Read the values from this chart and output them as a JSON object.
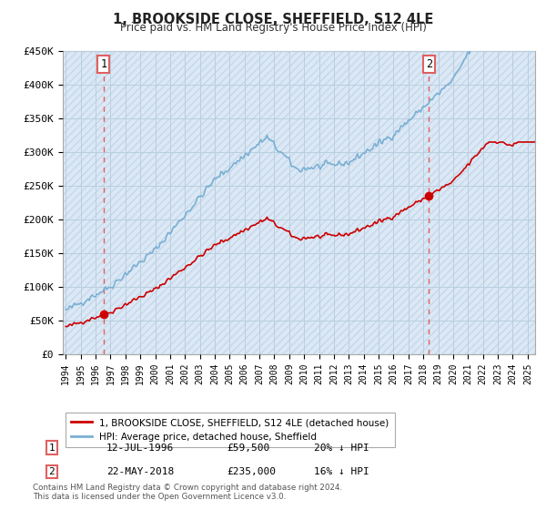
{
  "title": "1, BROOKSIDE CLOSE, SHEFFIELD, S12 4LE",
  "subtitle": "Price paid vs. HM Land Registry's House Price Index (HPI)",
  "ylim": [
    0,
    450000
  ],
  "yticks": [
    0,
    50000,
    100000,
    150000,
    200000,
    250000,
    300000,
    350000,
    400000,
    450000
  ],
  "ytick_labels": [
    "£0",
    "£50K",
    "£100K",
    "£150K",
    "£200K",
    "£250K",
    "£300K",
    "£350K",
    "£400K",
    "£450K"
  ],
  "sale1_year": 1996.54,
  "sale1_price": 59500,
  "sale2_year": 2018.37,
  "sale2_price": 235000,
  "legend_line1": "1, BROOKSIDE CLOSE, SHEFFIELD, S12 4LE (detached house)",
  "legend_line2": "HPI: Average price, detached house, Sheffield",
  "footer": "Contains HM Land Registry data © Crown copyright and database right 2024.\nThis data is licensed under the Open Government Licence v3.0.",
  "price_line_color": "#cc0000",
  "hpi_line_color": "#7ab0d4",
  "vline_color": "#e06060",
  "background_color": "#ffffff",
  "plot_bg_color": "#dce8f5",
  "grid_color": "#b8cfe0",
  "hatch_edgecolor": "#c5d8ea"
}
